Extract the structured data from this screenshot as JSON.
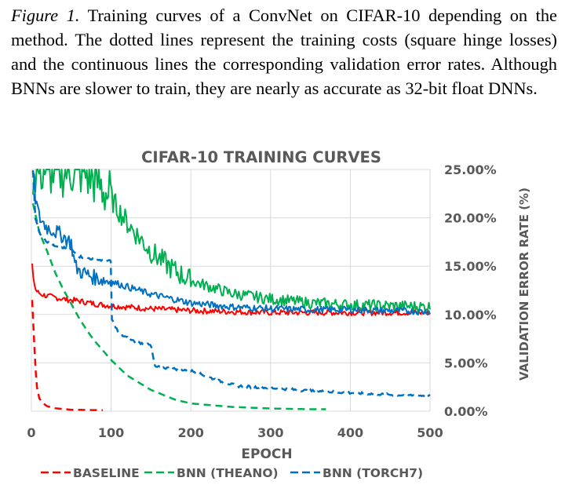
{
  "caption": {
    "figure_label": "Figure 1.",
    "text": "Training curves of a ConvNet on CIFAR-10 depending on the method. The dotted lines represent the training costs (square hinge losses) and the continuous lines the corresponding validation error rates. Although BNNs are slower to train, they are nearly as accurate as 32-bit float DNNs."
  },
  "chart_data": {
    "type": "line",
    "title": "CIFAR-10 TRAINING CURVES",
    "xlabel": "EPOCH",
    "ylabel": "VALIDATION ERROR RATE (%)",
    "xlim": [
      0,
      500
    ],
    "ylim": [
      0,
      25
    ],
    "x_ticks": [
      "0",
      "100",
      "200",
      "300",
      "400",
      "500"
    ],
    "y_ticks": [
      "0.00%",
      "5.00%",
      "10.00%",
      "15.00%",
      "20.00%",
      "25.00%"
    ],
    "grid": true,
    "legend_position": "bottom",
    "legend": [
      "BASELINE",
      "BNN (THEANO)",
      "BNN (TORCH7)"
    ],
    "series": [
      {
        "name": "BASELINE",
        "color": "#ff0000",
        "validation_error": {
          "x": [
            1,
            3,
            5,
            8,
            12,
            20,
            40,
            60,
            80,
            100,
            150,
            200,
            250,
            300,
            350,
            400,
            450,
            500
          ],
          "y": [
            15,
            13.5,
            12.6,
            12.3,
            12.1,
            11.9,
            11.6,
            11.4,
            11.1,
            10.9,
            10.6,
            10.4,
            10.3,
            10.2,
            10.2,
            10.2,
            10.2,
            10.2
          ]
        },
        "training_cost": {
          "x": [
            1,
            3,
            5,
            7,
            10,
            15,
            20,
            30,
            50,
            90
          ],
          "y": [
            11.5,
            8.0,
            4.5,
            2.5,
            1.3,
            0.8,
            0.5,
            0.3,
            0.15,
            0.1
          ]
        }
      },
      {
        "name": "BNN (THEANO)",
        "color": "#00b050",
        "validation_error": {
          "x": [
            2,
            10,
            20,
            40,
            60,
            80,
            100,
            120,
            150,
            180,
            200,
            250,
            300,
            350,
            400,
            450,
            500
          ],
          "y": [
            25,
            25,
            25,
            25,
            25,
            24.0,
            22.0,
            19.5,
            16.5,
            14.5,
            13.5,
            12.2,
            11.6,
            11.2,
            11.0,
            10.9,
            10.8
          ]
        },
        "training_cost": {
          "x": [
            2,
            10,
            20,
            30,
            40,
            50,
            60,
            70,
            80,
            100,
            120,
            150,
            180,
            200,
            250,
            300,
            350,
            370
          ],
          "y": [
            21.5,
            18.5,
            16.5,
            14.3,
            12.6,
            11.1,
            9.6,
            8.3,
            7.2,
            5.3,
            3.7,
            2.2,
            1.2,
            0.8,
            0.45,
            0.28,
            0.2,
            0.2
          ]
        }
      },
      {
        "name": "BNN (TORCH7)",
        "color": "#0070c0",
        "validation_error": {
          "x": [
            2,
            5,
            10,
            20,
            30,
            40,
            50,
            55,
            60,
            80,
            100,
            150,
            200,
            250,
            300,
            350,
            400,
            450,
            500
          ],
          "y": [
            25,
            22,
            20.0,
            19.0,
            18.6,
            18.1,
            17.4,
            15.0,
            14.5,
            13.8,
            13.4,
            12.1,
            11.2,
            10.8,
            10.6,
            10.5,
            10.5,
            10.4,
            10.3
          ]
        },
        "training_cost": {
          "x": [
            2,
            5,
            10,
            20,
            30,
            40,
            50,
            60,
            80,
            100,
            101,
            110,
            130,
            150,
            155,
            200,
            240,
            260,
            300,
            350,
            400,
            450,
            500
          ],
          "y": [
            25,
            20.0,
            18.5,
            17.5,
            17.0,
            16.9,
            16.7,
            16.0,
            15.7,
            15.5,
            9.5,
            8.0,
            7.2,
            6.8,
            4.6,
            4.2,
            3.0,
            2.6,
            2.4,
            2.1,
            1.9,
            1.7,
            1.6
          ]
        }
      }
    ]
  }
}
